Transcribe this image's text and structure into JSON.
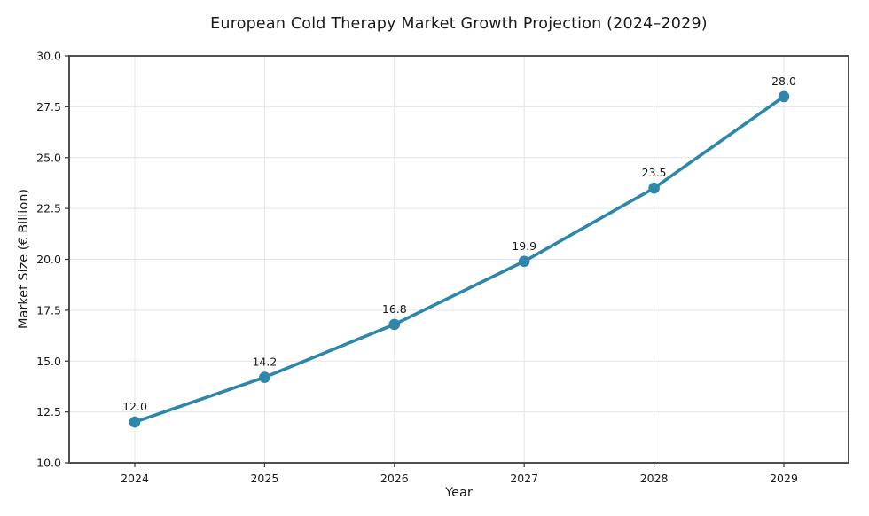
{
  "chart_data": {
    "type": "line",
    "title": "European Cold Therapy Market Growth Projection (2024–2029)",
    "xlabel": "Year",
    "ylabel": "Market Size (€ Billion)",
    "x": [
      2024,
      2025,
      2026,
      2027,
      2028,
      2029
    ],
    "x_tick_labels": [
      "2024",
      "2025",
      "2026",
      "2027",
      "2028",
      "2029"
    ],
    "series": [
      {
        "name": "Market Size",
        "values": [
          12.0,
          14.2,
          16.8,
          19.9,
          23.5,
          28.0
        ],
        "point_labels": [
          "12.0",
          "14.2",
          "16.8",
          "19.9",
          "23.5",
          "28.0"
        ]
      }
    ],
    "ylim": [
      10.0,
      30.0
    ],
    "y_tick_labels": [
      "10.0",
      "12.5",
      "15.0",
      "17.5",
      "20.0",
      "22.5",
      "25.0",
      "27.5",
      "30.0"
    ],
    "grid": true,
    "legend_position": "none",
    "colors": {
      "line": "#2E86AB",
      "marker": "#2E86AB",
      "grid": "#e4e4e4",
      "spine": "#3d3d3d",
      "text": "#1a1a1a",
      "background": "#ffffff"
    }
  }
}
